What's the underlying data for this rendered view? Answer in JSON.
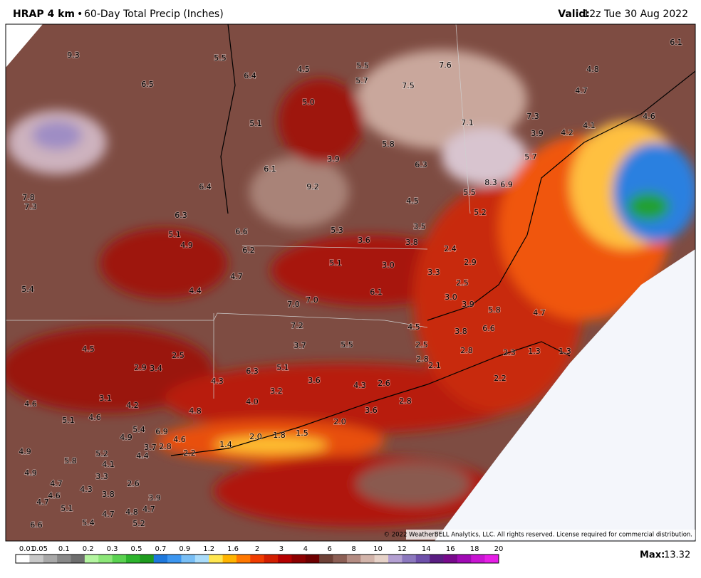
{
  "header": {
    "model": "HRAP 4 km",
    "separator": "•",
    "product": "60-Day Total Precip (Inches)",
    "valid_label": "Valid:",
    "valid_time": "12z Tue 30 Aug 2022"
  },
  "map": {
    "labels": [
      "9.3",
      "5.5",
      "6.4",
      "4.5",
      "5.5",
      "7.6",
      "6.1",
      "4.8",
      "6.5",
      "5.7",
      "7.5",
      "4.7",
      "5.0",
      "7.3",
      "4.6",
      "5.1",
      "7.1",
      "4.1",
      "3.9",
      "4.2",
      "5.8",
      "5.7",
      "3.9",
      "6.3",
      "6.1",
      "6.4",
      "9.2",
      "8.3",
      "6.9",
      "5.5",
      "7.8",
      "7.3",
      "4.5",
      "5.2",
      "6.3",
      "3.5",
      "5.3",
      "6.6",
      "5.1",
      "3.6",
      "3.8",
      "4.9",
      "2.4",
      "6.2",
      "5.1",
      "3.0",
      "2.9",
      "3.3",
      "4.7",
      "2.5",
      "5.4",
      "4.4",
      "6.1",
      "3.0",
      "7.0",
      "7.0",
      "3.9",
      "5.8",
      "4.7",
      "7.2",
      "4.5",
      "3.8",
      "6.6",
      "3.7",
      "5.5",
      "2.5",
      "4.5",
      "2.5",
      "2.8",
      "2.3",
      "1.3",
      "1.3",
      "2.8",
      "2.9",
      "3.4",
      "5.1",
      "2.1",
      "6.3",
      "3.6",
      "4.3",
      "4.3",
      "2.6",
      "2.2",
      "3.2",
      "3.1",
      "4.0",
      "2.8",
      "4.2",
      "4.6",
      "4.8",
      "3.6",
      "4.6",
      "5.1",
      "2.0",
      "5.4",
      "6.9",
      "1.5",
      "4.9",
      "1.8",
      "2.0",
      "4.6",
      "1.4",
      "3.7",
      "2.8",
      "4.9",
      "5.2",
      "2.2",
      "4.4",
      "5.8",
      "4.1",
      "4.9",
      "3.3",
      "4.7",
      "2.6",
      "4.3",
      "4.6",
      "3.8",
      "3.9",
      "4.7",
      "5.1",
      "4.8",
      "4.7",
      "4.7",
      "5.4",
      "5.2",
      "6.6"
    ],
    "copyright": "© 2022 WeatherBELL Analytics, LLC. All rights reserved. License required for commercial distribution."
  },
  "colorbar": {
    "ticks": [
      "0.01",
      "0.05",
      "0.1",
      "0.2",
      "0.3",
      "0.5",
      "0.7",
      "0.9",
      "1.2",
      "1.6",
      "2",
      "3",
      "4",
      "6",
      "8",
      "10",
      "12",
      "14",
      "16",
      "18",
      "20"
    ],
    "colors": [
      "#ffffff",
      "#c8c8c8",
      "#a8a8a8",
      "#888888",
      "#6e6e6e",
      "#b4f5a0",
      "#8ce678",
      "#5ad250",
      "#2db42d",
      "#1e9b1e",
      "#1e78dc",
      "#3c96f0",
      "#78bef5",
      "#aadcfa",
      "#ffe650",
      "#ffb400",
      "#ff7800",
      "#f03c00",
      "#d21e00",
      "#b40000",
      "#8c0000",
      "#6e0000",
      "#6e4137",
      "#8c5f55",
      "#b48c82",
      "#d2b4aa",
      "#e6d2c8",
      "#b4a0d2",
      "#8c78be",
      "#6e50aa",
      "#5a1e82",
      "#780a8c",
      "#a00ab4",
      "#c814d2",
      "#e61ee6"
    ],
    "max_label": "Max:",
    "max_value": "13.32"
  }
}
